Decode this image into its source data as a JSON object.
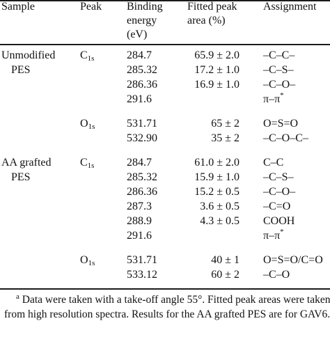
{
  "header": {
    "sample": "Sample",
    "peak": "Peak",
    "binding_energy": [
      "Binding",
      "energy",
      "(eV)"
    ],
    "fitted_area": [
      "Fitted peak",
      "area (%)"
    ],
    "assignment": "Assignment"
  },
  "rows": [
    {
      "sample": "Unmodified",
      "peak_el": "C",
      "peak_sub": "1s",
      "be": "284.7",
      "area": "65.9 ± 2.0",
      "assign": "–C–C–"
    },
    {
      "sample": "PES",
      "be": "285.32",
      "area": "17.2 ± 1.0",
      "assign": "–C–S–"
    },
    {
      "be": "286.36",
      "area": "16.9 ± 1.0",
      "assign": "–C–O–"
    },
    {
      "be": "291.6",
      "area": "",
      "assign": "π–π",
      "assign_sup": "*"
    },
    {
      "peak_el": "O",
      "peak_sub": "1s",
      "be": "531.71",
      "area": "65 ± 2",
      "assign": "O=S=O"
    },
    {
      "be": "532.90",
      "area": "35 ± 2",
      "assign": "–C–O–C–"
    },
    {
      "sample": "AA grafted",
      "peak_el": "C",
      "peak_sub": "1s",
      "be": "284.7",
      "area": "61.0 ± 2.0",
      "assign": "C–C"
    },
    {
      "sample": "PES",
      "be": "285.32",
      "area": "15.9 ± 1.0",
      "assign": "–C–S–"
    },
    {
      "be": "286.36",
      "area": "15.2 ± 0.5",
      "assign": "–C–O–"
    },
    {
      "be": "287.3",
      "area": "3.6 ± 0.5",
      "assign": "–C=O"
    },
    {
      "be": "288.9",
      "area": "4.3 ± 0.5",
      "assign": "COOH"
    },
    {
      "be": "291.6",
      "area": "",
      "assign": "π–π",
      "assign_sup": "*"
    },
    {
      "peak_el": "O",
      "peak_sub": "1s",
      "be": "531.71",
      "area": "40 ± 1",
      "assign": "O=S=O/C=O"
    },
    {
      "be": "533.12",
      "area": "60 ± 2",
      "assign": "–C–O"
    }
  ],
  "footnote": {
    "mark": "a",
    "text": "Data were taken with a take-off angle 55°. Fitted peak areas were taken from high resolution spectra. Results for the AA grafted PES are for GAV6."
  }
}
